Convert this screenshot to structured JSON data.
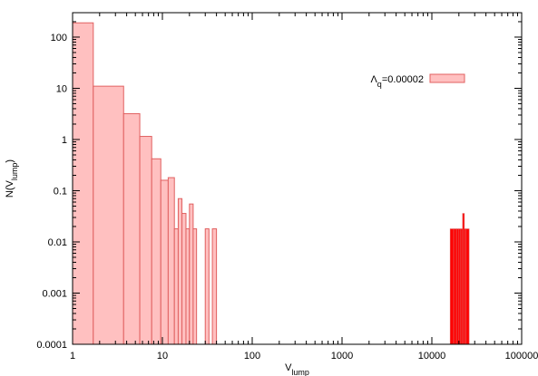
{
  "chart_data": {
    "type": "bar",
    "xscale": "log",
    "yscale": "log",
    "xlim": [
      1,
      100000
    ],
    "ylim": [
      0.0001,
      300
    ],
    "xlabel": {
      "base": "V",
      "sub": "lump"
    },
    "ylabel": {
      "pre": "N(V",
      "sub": "lump",
      "post": ")"
    },
    "x_ticks": [
      {
        "value": 1,
        "label": "1"
      },
      {
        "value": 10,
        "label": "10"
      },
      {
        "value": 100,
        "label": "100"
      },
      {
        "value": 1000,
        "label": "1000"
      },
      {
        "value": 10000,
        "label": "10000"
      },
      {
        "value": 100000,
        "label": "100000"
      }
    ],
    "y_ticks": [
      {
        "value": 0.0001,
        "label": "0.0001"
      },
      {
        "value": 0.001,
        "label": "0.001"
      },
      {
        "value": 0.01,
        "label": "0.01"
      },
      {
        "value": 0.1,
        "label": "0.1"
      },
      {
        "value": 1,
        "label": "1"
      },
      {
        "value": 10,
        "label": "10"
      },
      {
        "value": 100,
        "label": "100"
      }
    ],
    "grid": false,
    "legend": {
      "placement": "top-right",
      "symbol": "Λ",
      "sub": "q",
      "value": "=0.00002"
    },
    "colors": {
      "fill": "#ffc0c0",
      "stroke": "#e06060",
      "dense": "#ff0000"
    },
    "series": [
      {
        "bars": [
          {
            "x0": 1.0,
            "x1": 1.7,
            "y": 190
          },
          {
            "x0": 1.7,
            "x1": 3.7,
            "y": 11
          },
          {
            "x0": 3.7,
            "x1": 5.6,
            "y": 3.2
          },
          {
            "x0": 5.6,
            "x1": 7.6,
            "y": 1.15
          },
          {
            "x0": 7.6,
            "x1": 9.6,
            "y": 0.42
          },
          {
            "x0": 9.6,
            "x1": 11.6,
            "y": 0.16
          },
          {
            "x0": 11.6,
            "x1": 13.6,
            "y": 0.18
          },
          {
            "x0": 13.6,
            "x1": 15.0,
            "y": 0.018
          },
          {
            "x0": 15.0,
            "x1": 16.5,
            "y": 0.07
          },
          {
            "x0": 16.5,
            "x1": 18.3,
            "y": 0.036
          },
          {
            "x0": 18.3,
            "x1": 20.0,
            "y": 0.018
          },
          {
            "x0": 20.0,
            "x1": 22.0,
            "y": 0.055
          },
          {
            "x0": 22.0,
            "x1": 24.0,
            "y": 0.018
          },
          {
            "x0": 30.0,
            "x1": 33.0,
            "y": 0.018
          },
          {
            "x0": 36.0,
            "x1": 40.0,
            "y": 0.018
          },
          {
            "x0": 16000,
            "x1": 17500,
            "y": 0.018
          },
          {
            "x0": 17500,
            "x1": 18800,
            "y": 0.018
          },
          {
            "x0": 18800,
            "x1": 20000,
            "y": 0.018
          },
          {
            "x0": 20000,
            "x1": 21000,
            "y": 0.018
          },
          {
            "x0": 21000,
            "x1": 22000,
            "y": 0.018
          },
          {
            "x0": 22000,
            "x1": 23000,
            "y": 0.036
          },
          {
            "x0": 23000,
            "x1": 24000,
            "y": 0.018
          },
          {
            "x0": 24000,
            "x1": 26000,
            "y": 0.018
          }
        ]
      }
    ]
  }
}
